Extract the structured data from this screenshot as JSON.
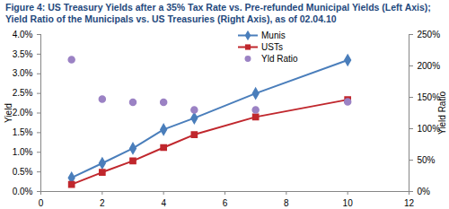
{
  "chart_data": {
    "type": "line",
    "title": "Figure 4: US Treasury Yields after a 35% Tax Rate vs. Pre-refunded Municipal Yields (Left Axis); Yield Ratio of the Municipals vs. US Treasuries (Right Axis), as of 02.04.10",
    "x": [
      1,
      2,
      3,
      4,
      5,
      7,
      10
    ],
    "xlim": [
      0,
      12
    ],
    "xticks": [
      0,
      2,
      4,
      6,
      8,
      10,
      12
    ],
    "ylabel": "Yield",
    "ylim": [
      0,
      4
    ],
    "yticks": [
      {
        "value": 0,
        "label": "0.0%"
      },
      {
        "value": 0.5,
        "label": "0.5%"
      },
      {
        "value": 1,
        "label": "1.0%"
      },
      {
        "value": 1.5,
        "label": "1.5%"
      },
      {
        "value": 2,
        "label": "2.0%"
      },
      {
        "value": 2.5,
        "label": "2.5%"
      },
      {
        "value": 3,
        "label": "3.0%"
      },
      {
        "value": 3.5,
        "label": "3.5%"
      },
      {
        "value": 4,
        "label": "4.0%"
      }
    ],
    "y2label": "Yield Ratio",
    "y2lim": [
      0,
      250
    ],
    "y2ticks": [
      {
        "value": 0,
        "label": "0%"
      },
      {
        "value": 50,
        "label": "50%"
      },
      {
        "value": 100,
        "label": "100%"
      },
      {
        "value": 150,
        "label": "150%"
      },
      {
        "value": 200,
        "label": "200%"
      },
      {
        "value": 250,
        "label": "250%"
      }
    ],
    "series": [
      {
        "name": "Munis",
        "color": "#4A7EBB",
        "marker": "diamond",
        "values": [
          0.35,
          0.72,
          1.1,
          1.58,
          1.87,
          2.5,
          3.35
        ]
      },
      {
        "name": "USTs",
        "color": "#C0272D",
        "marker": "square",
        "values": [
          0.18,
          0.49,
          0.78,
          1.12,
          1.45,
          1.9,
          2.34
        ]
      },
      {
        "name": "Yld Ratio",
        "type": "scatter",
        "axis": "y2",
        "color": "#9B82C4",
        "marker": "circle",
        "values": [
          210,
          147,
          142,
          142,
          130,
          130,
          143
        ]
      }
    ]
  }
}
